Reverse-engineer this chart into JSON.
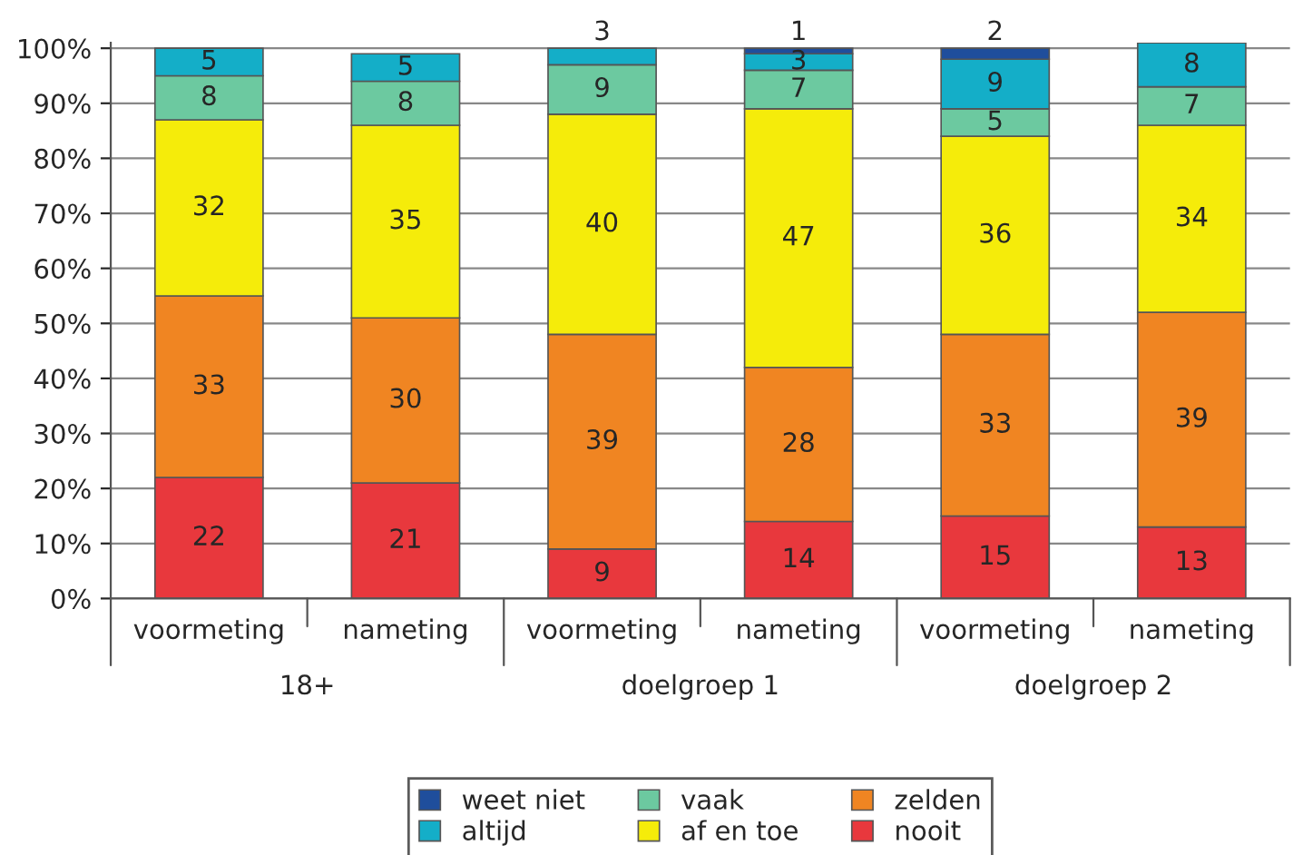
{
  "chart_data": {
    "type": "bar",
    "stacked": true,
    "categories": [
      "voormeting",
      "nameting",
      "voormeting",
      "nameting",
      "voormeting",
      "nameting"
    ],
    "series": [
      {
        "name": "nooit",
        "color": "#e8383d",
        "values": [
          22,
          21,
          9,
          14,
          15,
          13
        ]
      },
      {
        "name": "zelden",
        "color": "#f08522",
        "values": [
          33,
          30,
          39,
          28,
          33,
          39
        ]
      },
      {
        "name": "af en toe",
        "color": "#f5ec0a",
        "values": [
          32,
          35,
          40,
          47,
          36,
          34
        ]
      },
      {
        "name": "vaak",
        "color": "#6cc9a0",
        "values": [
          8,
          8,
          9,
          7,
          5,
          7
        ]
      },
      {
        "name": "altijd",
        "color": "#14aec8",
        "values": [
          5,
          5,
          3,
          3,
          9,
          8
        ]
      },
      {
        "name": "weet niet",
        "color": "#1f4e9c",
        "values": [
          null,
          null,
          null,
          1,
          2,
          null
        ]
      }
    ],
    "data_labels": true,
    "annotations": [
      "18+",
      "doelgroep 1",
      "doelgroep 2"
    ],
    "ylim": [
      0,
      101
    ],
    "yticks": [
      {
        "value": 0,
        "label": "0%"
      },
      {
        "value": 10,
        "label": "10%"
      },
      {
        "value": 20,
        "label": "20%"
      },
      {
        "value": 30,
        "label": "30%"
      },
      {
        "value": 40,
        "label": "40%"
      },
      {
        "value": 50,
        "label": "50%"
      },
      {
        "value": 60,
        "label": "60%"
      },
      {
        "value": 70,
        "label": "70%"
      },
      {
        "value": 80,
        "label": "80%"
      },
      {
        "value": 90,
        "label": "90%"
      },
      {
        "value": 100,
        "label": "100%"
      }
    ],
    "grid": "y",
    "legend": "bottom"
  }
}
